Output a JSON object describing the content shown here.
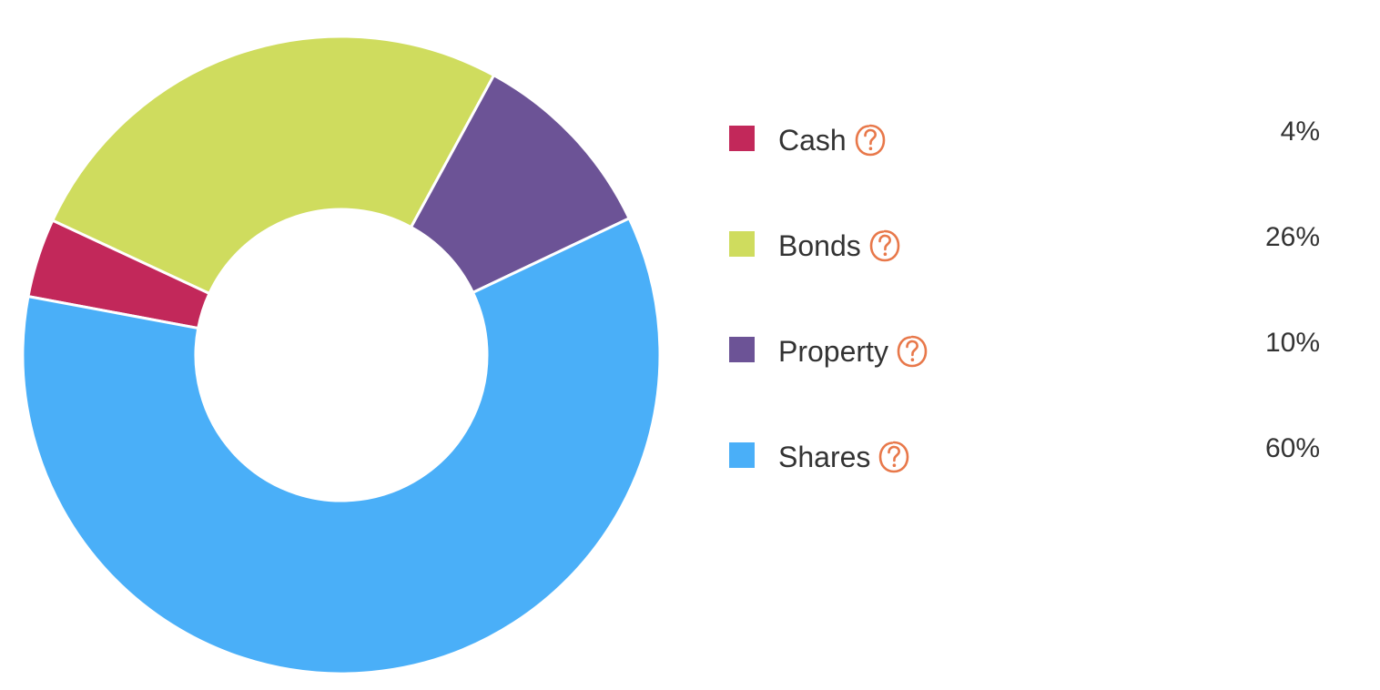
{
  "chart_data": {
    "type": "pie",
    "subtype": "donut",
    "start_angle_degrees": 0,
    "direction": "clockwise",
    "slices": [
      {
        "label": "Cash",
        "value": 4,
        "value_label": "4%",
        "color": "#C2285A"
      },
      {
        "label": "Bonds",
        "value": 26,
        "value_label": "26%",
        "color": "#CFDC5E"
      },
      {
        "label": "Property",
        "value": 10,
        "value_label": "10%",
        "color": "#6C5396"
      },
      {
        "label": "Shares",
        "value": 60,
        "value_label": "60%",
        "color": "#4AAFF8"
      }
    ],
    "legend_position": "right"
  },
  "colors": {
    "help_icon": "#E8784A",
    "text": "#333333",
    "slice_separator": "#FFFFFF"
  },
  "icons": {
    "help": "question-mark-circle-icon"
  }
}
